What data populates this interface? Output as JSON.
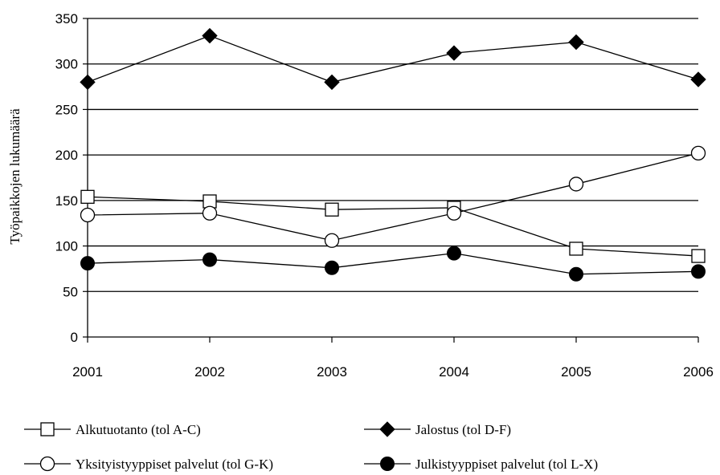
{
  "chart_data": {
    "type": "line",
    "title": "",
    "xlabel": "",
    "ylabel": "Työpaikkojen lukumäärä",
    "x": [
      "2001",
      "2002",
      "2003",
      "2004",
      "2005",
      "2006"
    ],
    "ylim": [
      0,
      350
    ],
    "yticks": [
      "0",
      "50",
      "100",
      "150",
      "200",
      "250",
      "300",
      "350"
    ],
    "grid": true,
    "legend_position": "bottom",
    "series": [
      {
        "name": "Alkutuotanto (tol A-C)",
        "marker": "square-open",
        "color": "#000000",
        "values": [
          154,
          149,
          140,
          142,
          97,
          89
        ]
      },
      {
        "name": "Jalostus (tol D-F)",
        "marker": "diamond-filled",
        "color": "#000000",
        "values": [
          280,
          331,
          280,
          312,
          324,
          283
        ]
      },
      {
        "name": "Yksityistyyppiset palvelut (tol G-K)",
        "marker": "circle-open",
        "color": "#000000",
        "values": [
          134,
          136,
          106,
          136,
          168,
          202
        ]
      },
      {
        "name": "Julkistyyppiset palvelut (tol L-X)",
        "marker": "circle-filled",
        "color": "#000000",
        "values": [
          81,
          85,
          76,
          92,
          69,
          72
        ]
      }
    ]
  }
}
